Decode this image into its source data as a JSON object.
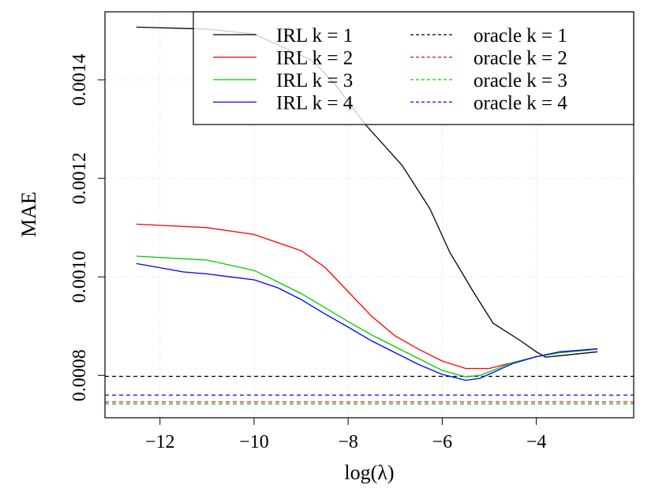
{
  "chart_data": {
    "type": "line",
    "title": "",
    "xlabel": "log(λ)",
    "ylabel": "MAE",
    "xlim": [
      -13.17,
      -1.93
    ],
    "ylim": [
      0.000714,
      0.001538
    ],
    "x_ticks": [
      -12,
      -10,
      -8,
      -6,
      -4
    ],
    "x_tick_labels": [
      "−12",
      "−10",
      "−8",
      "−6",
      "−4"
    ],
    "y_ticks": [
      0.0008,
      0.001,
      0.0012,
      0.0014
    ],
    "y_tick_labels": [
      "0.0008",
      "0.0010",
      "0.0012",
      "0.0014"
    ],
    "grid": true,
    "legend_position": "top-right",
    "series": [
      {
        "name": "IRL k = 1",
        "color": "#000000",
        "style": "solid",
        "x": [
          -12.5,
          -11,
          -10,
          -8.74,
          -8.24,
          -7.64,
          -6.85,
          -6.26,
          -5.84,
          -5.34,
          -4.92,
          -4.33,
          -4,
          -3.8,
          -3.5,
          -2.7
        ],
        "y": [
          0.001507,
          0.001503,
          0.001493,
          0.001438,
          0.001386,
          0.00131,
          0.001226,
          0.001138,
          0.00105,
          0.00097,
          0.000906,
          0.00087,
          0.000848,
          0.000837,
          0.00084,
          0.000848
        ]
      },
      {
        "name": "IRL k = 2",
        "color": "#ff0000",
        "style": "solid",
        "x": [
          -12.5,
          -11,
          -10,
          -9,
          -8.5,
          -8,
          -7.5,
          -7,
          -6.5,
          -6,
          -5.5,
          -5,
          -4.5,
          -4,
          -3.5,
          -2.7
        ],
        "y": [
          0.001107,
          0.0011,
          0.001086,
          0.001053,
          0.00102,
          0.00097,
          0.00092,
          0.00088,
          0.000853,
          0.000829,
          0.000814,
          0.000814,
          0.000826,
          0.000838,
          0.000846,
          0.000853
        ]
      },
      {
        "name": "IRL k = 3",
        "color": "#00cc00",
        "style": "solid",
        "x": [
          -12.5,
          -11,
          -10,
          -9.5,
          -9,
          -8.5,
          -8,
          -7.5,
          -7,
          -6.5,
          -6,
          -5.5,
          -5.2,
          -4.5,
          -4,
          -3.5,
          -2.7
        ],
        "y": [
          0.001042,
          0.001034,
          0.001013,
          0.00099,
          0.000966,
          0.000938,
          0.000909,
          0.000882,
          0.000858,
          0.000834,
          0.00081,
          0.000797,
          0.0008,
          0.000826,
          0.000838,
          0.000846,
          0.000853
        ]
      },
      {
        "name": "IRL k = 4",
        "color": "#0000ff",
        "style": "solid",
        "x": [
          -12.5,
          -11.5,
          -11,
          -10.5,
          -10,
          -9.5,
          -9,
          -8.5,
          -8,
          -7.5,
          -7,
          -6.5,
          -6,
          -5.5,
          -5.2,
          -4.5,
          -4,
          -3.5,
          -2.7
        ],
        "y": [
          0.001027,
          0.00101,
          0.001006,
          0.001,
          0.000994,
          0.000978,
          0.000954,
          0.000925,
          0.000898,
          0.00087,
          0.000846,
          0.000822,
          0.000802,
          0.00079,
          0.000794,
          0.000824,
          0.000838,
          0.000848,
          0.000854
        ]
      },
      {
        "name": "oracle k = 1",
        "color": "#000000",
        "style": "dashed",
        "hline": 0.000798
      },
      {
        "name": "oracle k = 2",
        "color": "#ff0000",
        "style": "dashed",
        "hline": 0.000746
      },
      {
        "name": "oracle k = 3",
        "color": "#00cc00",
        "style": "dashed",
        "hline": 0.000742
      },
      {
        "name": "oracle k = 4",
        "color": "#0000ff",
        "style": "dashed",
        "hline": 0.00076
      }
    ]
  }
}
